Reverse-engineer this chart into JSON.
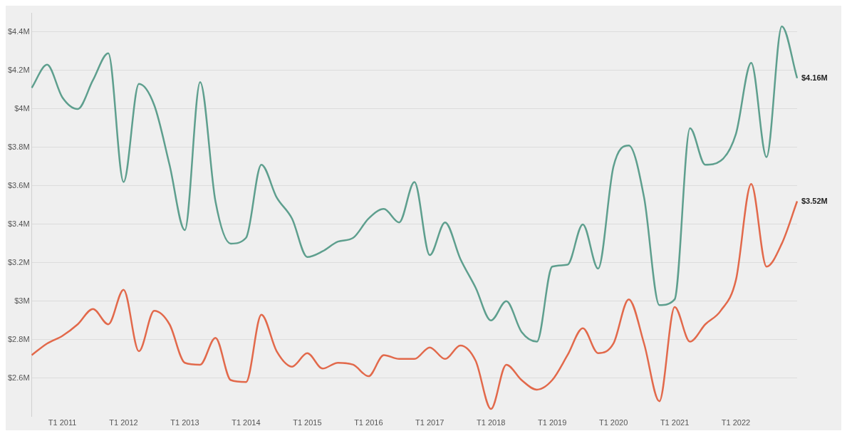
{
  "chart_data": {
    "type": "line",
    "ylim": [
      2.4,
      4.5
    ],
    "categories": [
      null,
      null,
      "T1 2011",
      null,
      null,
      null,
      "T1 2012",
      null,
      null,
      null,
      "T1 2013",
      null,
      null,
      null,
      "T1 2014",
      null,
      null,
      null,
      "T1 2015",
      null,
      null,
      null,
      "T1 2016",
      null,
      null,
      null,
      "T1 2017",
      null,
      null,
      null,
      "T1 2018",
      null,
      null,
      null,
      "T1 2019",
      null,
      null,
      null,
      "T1 2020",
      null,
      null,
      null,
      "T1 2021",
      null,
      null,
      null,
      "T1 2022",
      null,
      null,
      null,
      null
    ],
    "yticks": [
      {
        "value": 2.6,
        "label": "$2.6M"
      },
      {
        "value": 2.8,
        "label": "$2.8M"
      },
      {
        "value": 3,
        "label": "$3M"
      },
      {
        "value": 3.2,
        "label": "$3.2M"
      },
      {
        "value": 3.4,
        "label": "$3.4M"
      },
      {
        "value": 3.6,
        "label": "$3.6M"
      },
      {
        "value": 3.8,
        "label": "$3.8M"
      },
      {
        "value": 4,
        "label": "$4M"
      },
      {
        "value": 4.2,
        "label": "$4.2M"
      },
      {
        "value": 4.4,
        "label": "$4.4M"
      }
    ],
    "grid": "y",
    "marker": "none",
    "line_style": "solid",
    "series": [
      {
        "color": "#5e9f8e",
        "values": [
          4.11,
          4.23,
          4.06,
          4,
          4.15,
          4.29,
          3.62,
          4.13,
          4.02,
          3.71,
          3.37,
          4.14,
          3.52,
          3.3,
          3.33,
          3.71,
          3.54,
          3.43,
          3.23,
          3.26,
          3.31,
          3.33,
          3.43,
          3.48,
          3.41,
          3.62,
          3.24,
          3.41,
          3.22,
          3.07,
          2.9,
          3,
          2.84,
          2.79,
          3.18,
          3.19,
          3.4,
          3.17,
          3.7,
          3.81,
          3.54,
          2.98,
          3.01,
          3.9,
          3.71,
          3.73,
          3.87,
          4.24,
          3.75,
          4.43,
          4.16
        ],
        "value_labels": [
          null,
          null,
          null,
          null,
          null,
          null,
          null,
          null,
          null,
          null,
          null,
          null,
          null,
          null,
          null,
          null,
          null,
          null,
          null,
          null,
          null,
          null,
          null,
          null,
          null,
          null,
          null,
          null,
          null,
          null,
          null,
          null,
          null,
          null,
          null,
          null,
          null,
          null,
          null,
          null,
          null,
          null,
          null,
          null,
          null,
          null,
          null,
          null,
          null,
          null,
          "$4.16M"
        ]
      },
      {
        "color": "#e2694b",
        "values": [
          2.72,
          2.78,
          2.82,
          2.88,
          2.96,
          2.88,
          3.06,
          2.74,
          2.95,
          2.88,
          2.68,
          2.67,
          2.81,
          2.59,
          2.58,
          2.93,
          2.74,
          2.66,
          2.73,
          2.65,
          2.68,
          2.67,
          2.61,
          2.72,
          2.7,
          2.7,
          2.76,
          2.7,
          2.77,
          2.69,
          2.44,
          2.67,
          2.59,
          2.54,
          2.59,
          2.72,
          2.86,
          2.73,
          2.78,
          3.01,
          2.78,
          2.48,
          2.97,
          2.79,
          2.88,
          2.95,
          3.11,
          3.61,
          3.18,
          3.3,
          3.52
        ],
        "value_labels": [
          null,
          null,
          null,
          null,
          null,
          null,
          null,
          null,
          null,
          null,
          null,
          null,
          null,
          null,
          null,
          null,
          null,
          null,
          null,
          null,
          null,
          null,
          null,
          null,
          null,
          null,
          null,
          null,
          null,
          null,
          null,
          null,
          null,
          null,
          null,
          null,
          null,
          null,
          null,
          null,
          null,
          null,
          null,
          null,
          null,
          null,
          null,
          null,
          null,
          null,
          "$3.52M"
        ]
      }
    ]
  }
}
